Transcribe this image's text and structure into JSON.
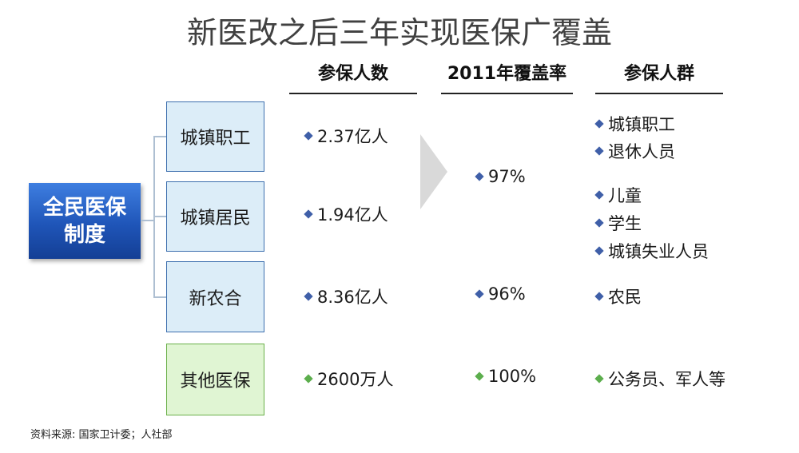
{
  "title": "新医改之后三年实现医保广覆盖",
  "columns": [
    "参保人数",
    "2011年覆盖率",
    "参保人群"
  ],
  "root": {
    "line1": "全民医保",
    "line2": "制度"
  },
  "rows": [
    {
      "category": "城镇职工",
      "count": "2.37亿人",
      "groups": [
        "城镇职工",
        "退休人员"
      ]
    },
    {
      "category": "城镇居民",
      "count": "1.94亿人",
      "groups": [
        "儿童",
        "学生",
        "城镇失业人员"
      ]
    },
    {
      "category": "新农合",
      "count": "8.36亿人",
      "groups": [
        "农民"
      ]
    },
    {
      "category": "其他医保",
      "count": "2600万人",
      "groups": [
        "公务员、军人等"
      ]
    }
  ],
  "coverage": {
    "urban": "97%",
    "rural": "96%",
    "other": "100%"
  },
  "source": "资料来源: 国家卫计委；人社部",
  "colors": {
    "root_gradient_top": "#3e7ee0",
    "root_gradient_bottom": "#143f95",
    "blue_box": "#dcedf8",
    "green_box": "#e0f5d3",
    "blue_bullet": "#3f5fa8",
    "green_bullet": "#5cae4d"
  }
}
